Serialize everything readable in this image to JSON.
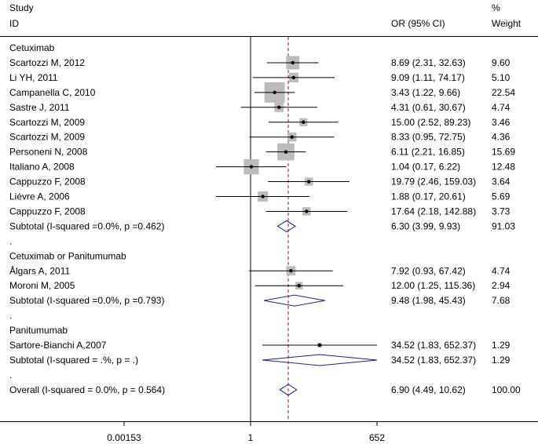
{
  "chart_data": {
    "type": "forest",
    "headers": {
      "study_line1": "Study",
      "study_line2": "ID",
      "or_ci": "OR (95% CI)",
      "weight_line1": "%",
      "weight_line2": "Weight"
    },
    "x_scale": "log",
    "xlim": [
      0.00153,
      652
    ],
    "x_ticks": [
      {
        "value": 0.00153,
        "label": "0.00153"
      },
      {
        "value": 1,
        "label": "1"
      },
      {
        "value": 652,
        "label": "652"
      }
    ],
    "reference_line": 1,
    "overall_line": 6.9,
    "rows": [
      {
        "kind": "group",
        "label": "Cetuximab"
      },
      {
        "kind": "study",
        "label": "Scartozzi M, 2012",
        "or": 8.69,
        "lo": 2.31,
        "hi": 32.63,
        "ci_text": "8.69 (2.31, 32.63)",
        "weight": 9.6,
        "weight_text": "9.60"
      },
      {
        "kind": "study",
        "label": "Li YH, 2011",
        "or": 9.09,
        "lo": 1.11,
        "hi": 74.17,
        "ci_text": "9.09 (1.11, 74.17)",
        "weight": 5.1,
        "weight_text": "5.10"
      },
      {
        "kind": "study",
        "label": "Campanella C, 2010",
        "or": 3.43,
        "lo": 1.22,
        "hi": 9.66,
        "ci_text": "3.43 (1.22, 9.66)",
        "weight": 22.54,
        "weight_text": "22.54"
      },
      {
        "kind": "study",
        "label": "Sastre J, 2011",
        "or": 4.31,
        "lo": 0.61,
        "hi": 30.67,
        "ci_text": "4.31 (0.61, 30.67)",
        "weight": 4.74,
        "weight_text": "4.74"
      },
      {
        "kind": "study",
        "label": "Scartozzi M, 2009",
        "or": 15.0,
        "lo": 2.52,
        "hi": 89.23,
        "ci_text": "15.00 (2.52, 89.23)",
        "weight": 3.46,
        "weight_text": "3.46"
      },
      {
        "kind": "study",
        "label": "Scartozzi M, 2009",
        "or": 8.33,
        "lo": 0.95,
        "hi": 72.75,
        "ci_text": "8.33 (0.95, 72.75)",
        "weight": 4.36,
        "weight_text": "4.36"
      },
      {
        "kind": "study",
        "label": "Personeni N, 2008",
        "or": 6.11,
        "lo": 2.21,
        "hi": 16.85,
        "ci_text": "6.11 (2.21, 16.85)",
        "weight": 15.69,
        "weight_text": "15.69"
      },
      {
        "kind": "study",
        "label": "Italiano A, 2008",
        "or": 1.04,
        "lo": 0.17,
        "hi": 6.22,
        "ci_text": "1.04 (0.17, 6.22)",
        "weight": 12.48,
        "weight_text": "12.48"
      },
      {
        "kind": "study",
        "label": "Cappuzzo F, 2008",
        "or": 19.79,
        "lo": 2.46,
        "hi": 159.03,
        "ci_text": "19.79 (2.46, 159.03)",
        "weight": 3.64,
        "weight_text": "3.64"
      },
      {
        "kind": "study",
        "label": "Lièvre A, 2006",
        "or": 1.88,
        "lo": 0.17,
        "hi": 20.61,
        "ci_text": "1.88 (0.17, 20.61)",
        "weight": 5.69,
        "weight_text": "5.69"
      },
      {
        "kind": "study",
        "label": "Cappuzzo F, 2008",
        "or": 17.64,
        "lo": 2.18,
        "hi": 142.88,
        "ci_text": "17.64 (2.18, 142.88)",
        "weight": 3.73,
        "weight_text": "3.73"
      },
      {
        "kind": "subtotal",
        "label": "Subtotal  (I-squared =0.0%, p =0.462)",
        "or": 6.3,
        "lo": 3.99,
        "hi": 9.93,
        "ci_text": "6.30 (3.99, 9.93)",
        "weight_text": "91.03"
      },
      {
        "kind": "spacer",
        "label": "."
      },
      {
        "kind": "group",
        "label": "Cetuximab or Panitumumab"
      },
      {
        "kind": "study",
        "label": "Ålgars A, 2011",
        "or": 7.92,
        "lo": 0.93,
        "hi": 67.42,
        "ci_text": "7.92 (0.93, 67.42)",
        "weight": 4.74,
        "weight_text": "4.74"
      },
      {
        "kind": "study",
        "label": "Moroni M, 2005",
        "or": 12.0,
        "lo": 1.25,
        "hi": 115.36,
        "ci_text": "12.00 (1.25, 115.36)",
        "weight": 2.94,
        "weight_text": "2.94"
      },
      {
        "kind": "subtotal",
        "label": "Subtotal  (I-squared =0.0%, p =0.793)",
        "or": 9.48,
        "lo": 1.98,
        "hi": 45.43,
        "ci_text": "9.48 (1.98, 45.43)",
        "weight_text": "7.68"
      },
      {
        "kind": "spacer",
        "label": "."
      },
      {
        "kind": "group",
        "label": "Panitumumab"
      },
      {
        "kind": "study",
        "label": "Sartore-Bianchi A,2007",
        "or": 34.52,
        "lo": 1.83,
        "hi": 652.37,
        "ci_text": "34.52 (1.83, 652.37)",
        "weight": 1.29,
        "weight_text": "1.29"
      },
      {
        "kind": "subtotal",
        "label": "Subtotal  (I-squared = .%, p = .)",
        "or": 34.52,
        "lo": 1.83,
        "hi": 652.37,
        "ci_text": "34.52 (1.83, 652.37)",
        "weight_text": "1.29"
      },
      {
        "kind": "spacer",
        "label": "."
      },
      {
        "kind": "subtotal",
        "label": "Overall  (I-squared = 0.0%, p = 0.564)",
        "or": 6.9,
        "lo": 4.49,
        "hi": 10.62,
        "ci_text": "6.90 (4.49, 10.62)",
        "weight_text": "100.00"
      }
    ]
  },
  "colors": {
    "box": "#bcbcbc",
    "diamond": "#1f1f8f",
    "reference_line": "#000000",
    "overall_line": "#8b1a3a"
  }
}
